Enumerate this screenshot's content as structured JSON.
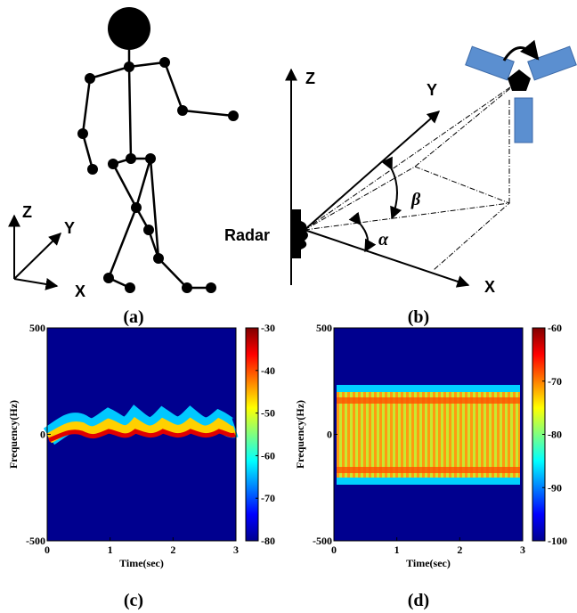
{
  "panels": {
    "a": {
      "axes": {
        "z": "Z",
        "y": "Y",
        "x": "X"
      },
      "caption": "(a)"
    },
    "b": {
      "axes": {
        "z": "Z",
        "y": "Y",
        "x": "X"
      },
      "radar": "Radar",
      "beta": "β",
      "alpha": "α",
      "caption": "(b)"
    }
  },
  "chart_data": [
    {
      "type": "heatmap",
      "ylabel": "Frequency(Hz)",
      "xlabel": "Time(sec)",
      "caption": "(c)",
      "xlim": [
        0,
        3
      ],
      "xticks": [
        0,
        1,
        2,
        3
      ],
      "ylim": [
        -500,
        500
      ],
      "yticks": [
        -500,
        0,
        500
      ],
      "clim": [
        -80,
        -30
      ],
      "cticks": [
        -30,
        -40,
        -50,
        -60,
        -70,
        -80
      ]
    },
    {
      "type": "heatmap",
      "ylabel": "Frequency(Hz)",
      "xlabel": "Time(sec)",
      "caption": "(d)",
      "xlim": [
        0,
        3
      ],
      "xticks": [
        0,
        1,
        2,
        3
      ],
      "ylim": [
        -500,
        500
      ],
      "yticks": [
        -500,
        0,
        500
      ],
      "clim": [
        -100,
        -60
      ],
      "cticks": [
        -60,
        -70,
        -80,
        -90,
        -100
      ]
    }
  ]
}
